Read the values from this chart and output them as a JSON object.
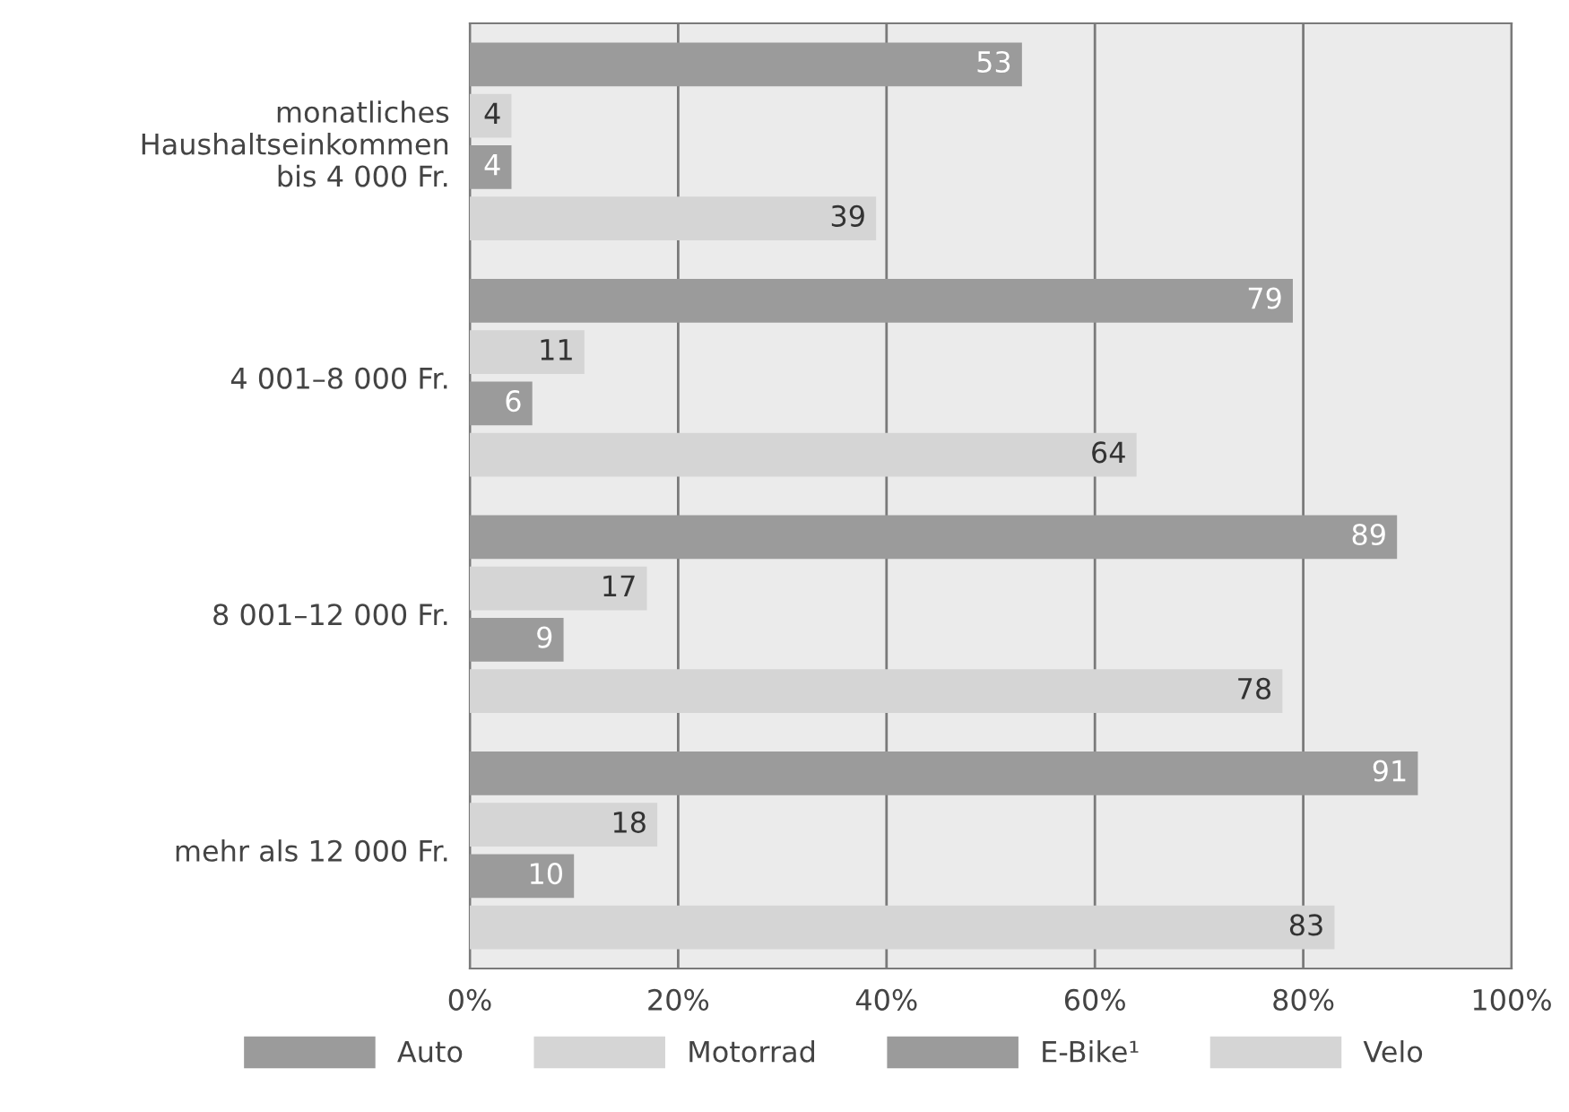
{
  "chart_data": {
    "type": "bar",
    "orientation": "horizontal",
    "categories": [
      "monatliches\nHaushaltseinkommen\nbis 4 000 Fr.",
      "4 001–8 000 Fr.",
      "8 001–12 000 Fr.",
      "mehr als 12 000 Fr."
    ],
    "series": [
      {
        "name": "Auto",
        "color": "#9b9b9b",
        "values": [
          53,
          79,
          89,
          91
        ]
      },
      {
        "name": "Motorrad",
        "color": "#d5d5d5",
        "values": [
          4,
          11,
          17,
          18
        ]
      },
      {
        "name": "E-Bike¹",
        "color": "#9b9b9b",
        "values": [
          4,
          6,
          9,
          10
        ]
      },
      {
        "name": "Velo",
        "color": "#d5d5d5",
        "values": [
          39,
          64,
          78,
          83
        ]
      }
    ],
    "xlim": [
      0,
      100
    ],
    "xticks": [
      {
        "value": 0,
        "label": "0%"
      },
      {
        "value": 20,
        "label": "20%"
      },
      {
        "value": 40,
        "label": "40%"
      },
      {
        "value": 60,
        "label": "60%"
      },
      {
        "value": 80,
        "label": "80%"
      },
      {
        "value": 100,
        "label": "100%"
      }
    ],
    "grid": "x",
    "legend": "bottom",
    "data_labels": true
  }
}
